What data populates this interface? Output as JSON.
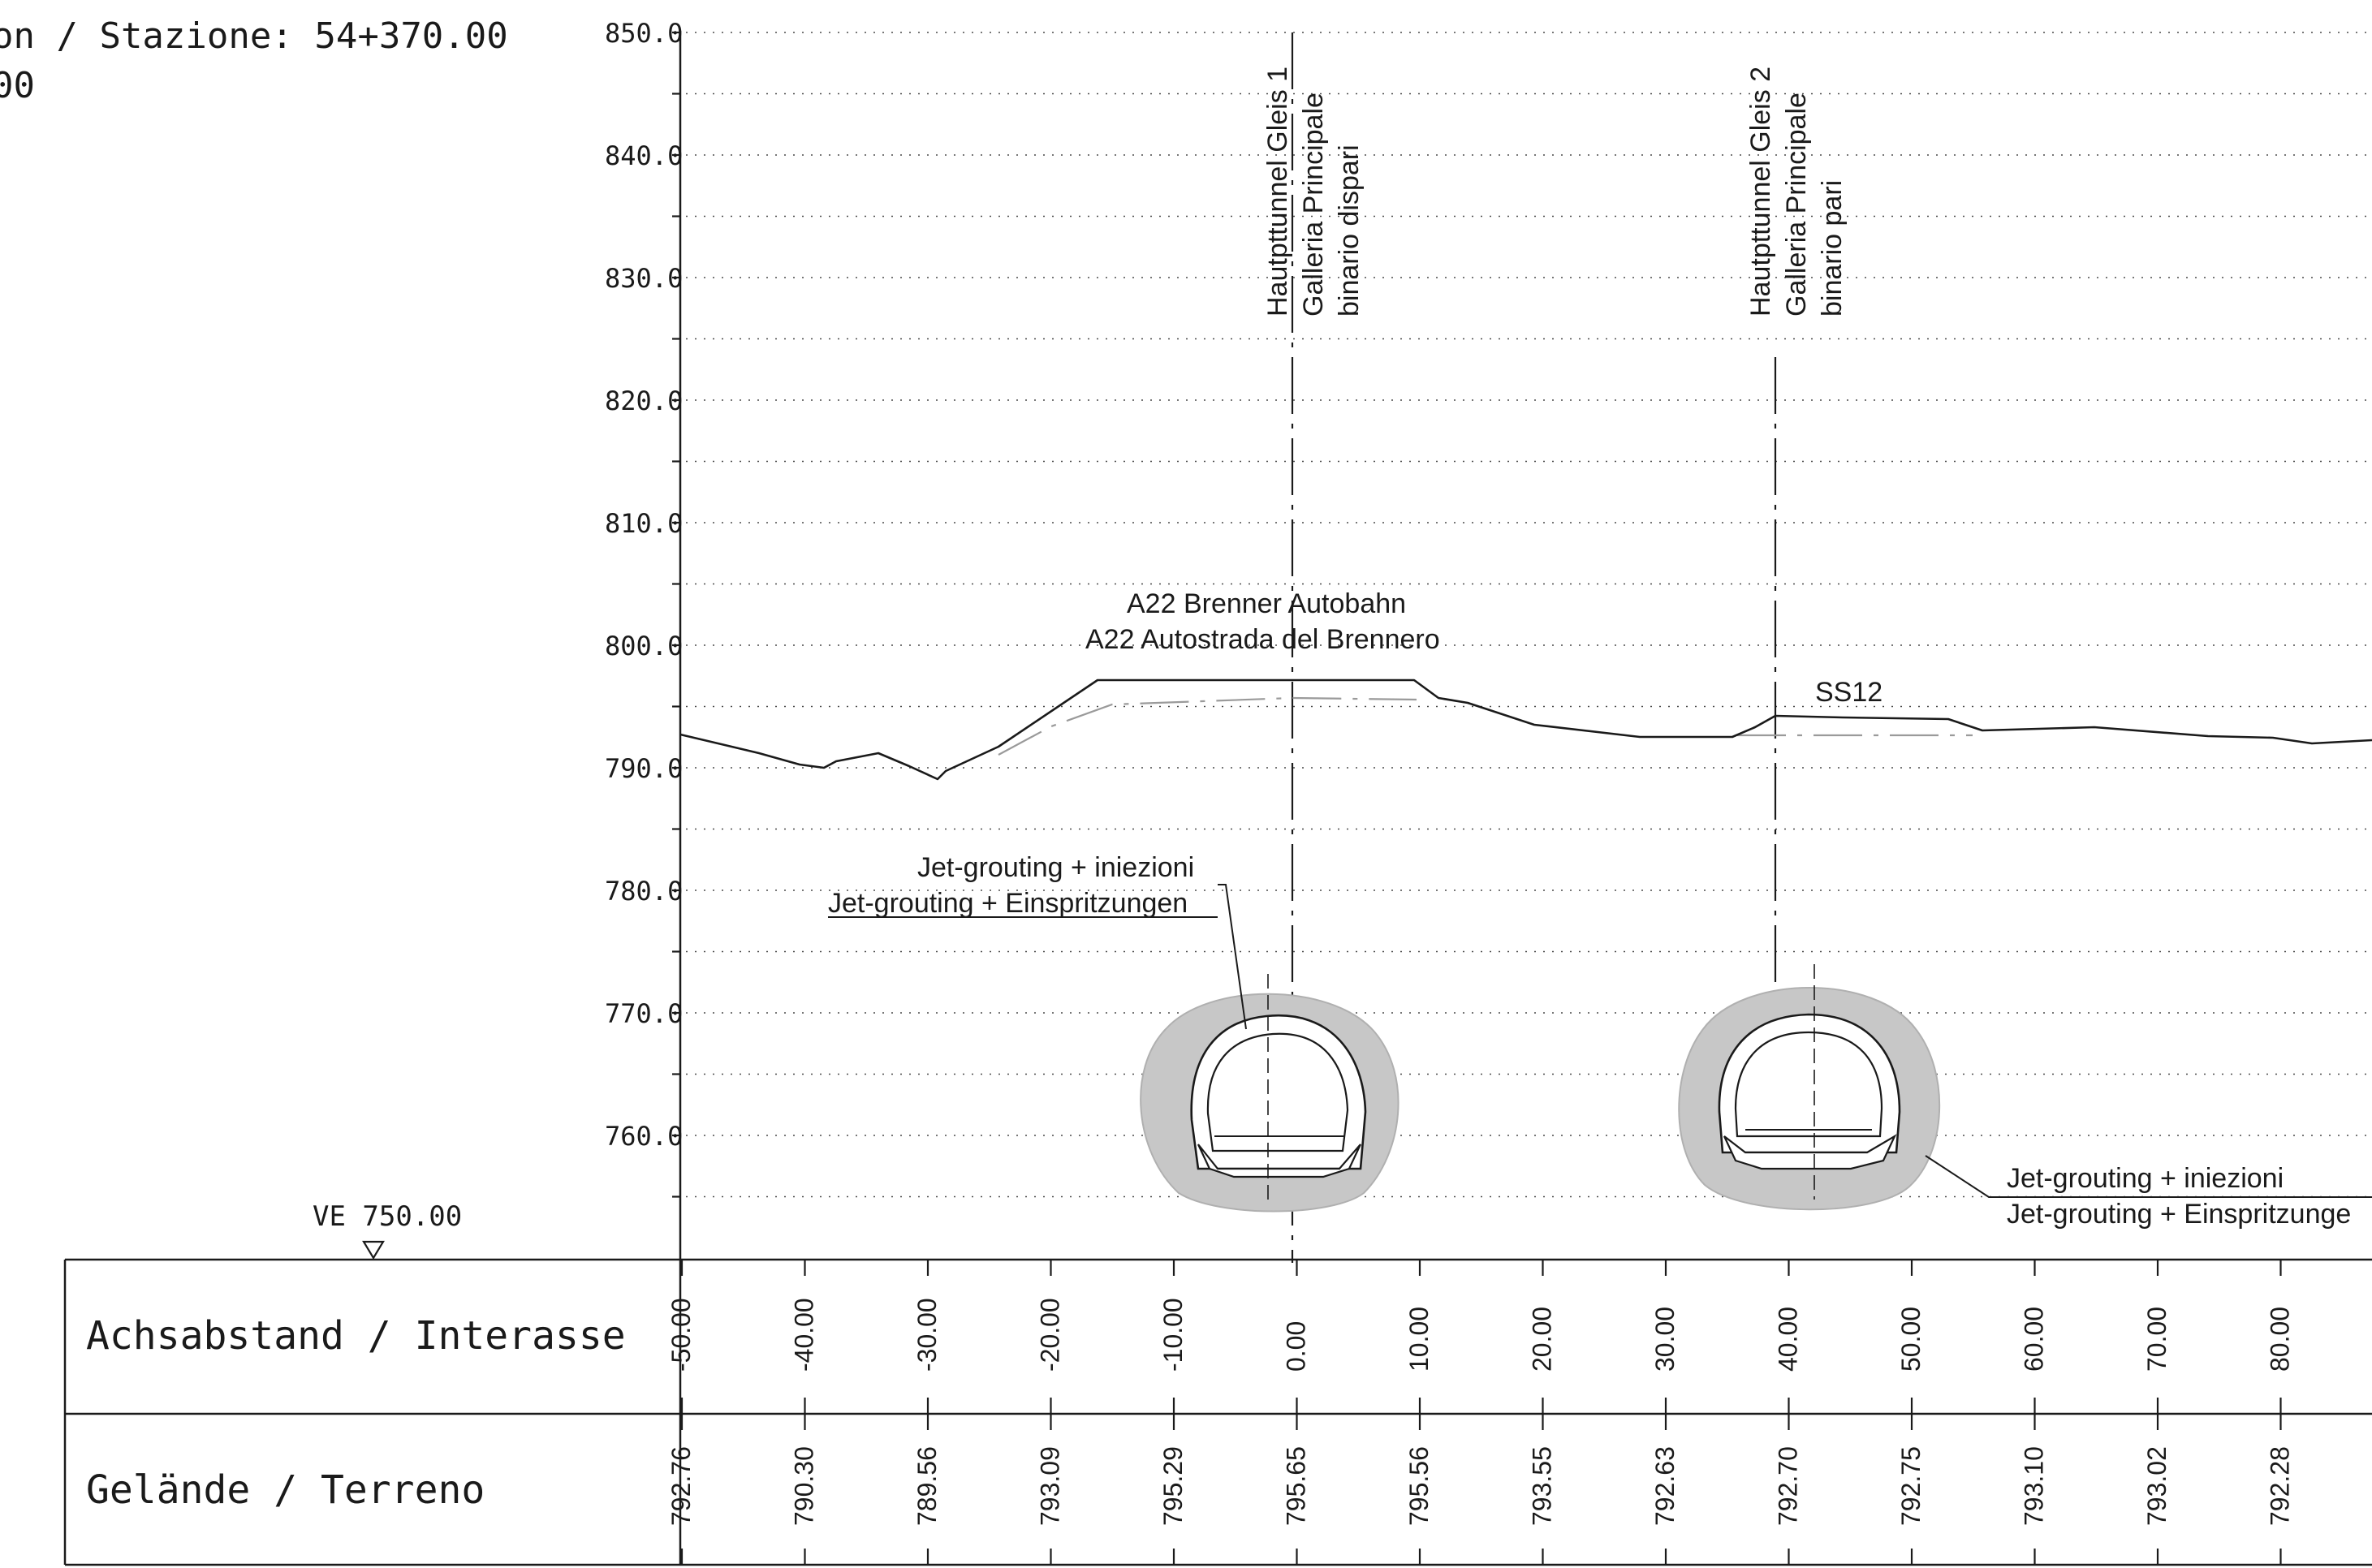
{
  "header": {
    "station_line": "on / Stazione: 54+370.00",
    "scale_line": "00"
  },
  "elevation_axis": {
    "labels": [
      "850.0",
      "840.0",
      "830.0",
      "820.0",
      "810.0",
      "800.0",
      "790.0",
      "780.0",
      "770.0",
      "760.0"
    ]
  },
  "reference_level": {
    "label": "VE 750.00"
  },
  "tunnels": {
    "track1": {
      "line1": "Hautpttunnel Gleis 1",
      "line2": "Galleria Principale",
      "line3": "binario dispari"
    },
    "track2": {
      "line1": "Hautpttunnel Gleis 2",
      "line2": "Galleria Principale",
      "line3": "binario pari"
    }
  },
  "roads": {
    "a22": {
      "line1": "A22 Brenner Autobahn",
      "line2": "A22 Autostrada del Brennero"
    },
    "ss12": {
      "label": "SS12"
    }
  },
  "callouts": {
    "left": {
      "line1": "Jet-grouting + iniezioni",
      "line2": "Jet-grouting + Einspritzungen"
    },
    "right": {
      "line1": "Jet-grouting + iniezioni",
      "line2": "Jet-grouting + Einspritzunge"
    }
  },
  "table": {
    "row1_label": "Achsabstand / Interasse",
    "row2_label": "Gelände / Terreno",
    "offsets": [
      "-50.00",
      "-40.00",
      "-30.00",
      "-20.00",
      "-10.00",
      "0.00",
      "10.00",
      "20.00",
      "30.00",
      "40.00",
      "50.00",
      "60.00",
      "70.00",
      "80.00"
    ],
    "elevations": [
      "792.76",
      "790.30",
      "789.56",
      "793.09",
      "795.29",
      "795.65",
      "795.56",
      "793.55",
      "792.63",
      "792.70",
      "792.75",
      "793.10",
      "793.02",
      "792.28"
    ]
  },
  "chart_data": {
    "type": "line",
    "xlabel": "Achsabstand / Interasse",
    "ylabel": "",
    "ylim": [
      750,
      850
    ],
    "x": [
      -50,
      -40,
      -30,
      -20,
      -10,
      0,
      10,
      20,
      30,
      40,
      50,
      60,
      70,
      80
    ],
    "series": [
      {
        "name": "Gelände / Terreno",
        "values": [
          792.76,
          790.3,
          789.56,
          793.09,
          795.29,
          795.65,
          795.56,
          793.55,
          792.63,
          792.7,
          792.75,
          793.1,
          793.02,
          792.28
        ]
      }
    ]
  }
}
